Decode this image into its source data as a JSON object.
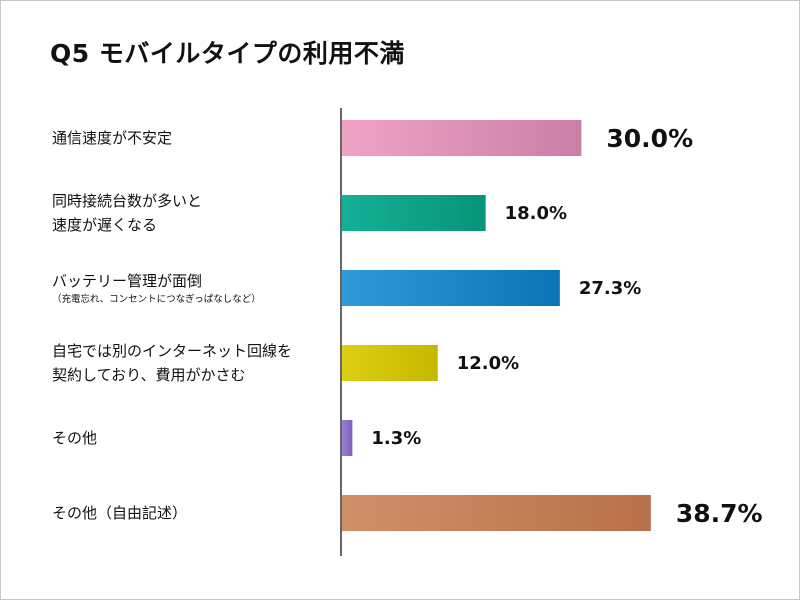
{
  "chart_data": {
    "type": "bar",
    "orientation": "horizontal",
    "title": "Q5  モバイルタイプの利用不満",
    "categories": [
      {
        "lines": [
          "通信速度が不安定"
        ],
        "note": ""
      },
      {
        "lines": [
          "同時接続台数が多いと",
          "速度が遅くなる"
        ],
        "note": ""
      },
      {
        "lines": [
          "バッテリー管理が面倒"
        ],
        "note": "（充電忘れ、コンセントにつなぎっぱなしなど）"
      },
      {
        "lines": [
          "自宅では別のインターネット回線を",
          "契約しており、費用がかさむ"
        ],
        "note": ""
      },
      {
        "lines": [
          "その他"
        ],
        "note": ""
      },
      {
        "lines": [
          "その他（自由記述）"
        ],
        "note": ""
      }
    ],
    "values": [
      30.0,
      18.0,
      27.3,
      12.0,
      1.3,
      38.7
    ],
    "value_labels": [
      "30.0%",
      "18.0%",
      "27.3%",
      "12.0%",
      "1.3%",
      "38.7%"
    ],
    "highlighted": [
      true,
      false,
      false,
      false,
      false,
      true
    ],
    "colors": [
      [
        "#f0a3c4",
        "#c97fa6"
      ],
      [
        "#15b096",
        "#079479"
      ],
      [
        "#2f9ad8",
        "#0a74b6"
      ],
      [
        "#dccf12",
        "#c5b800"
      ],
      [
        "#9b7fd0",
        "#7e60be"
      ],
      [
        "#d18f68",
        "#b8704a"
      ]
    ],
    "grid": false,
    "legend": "none"
  }
}
